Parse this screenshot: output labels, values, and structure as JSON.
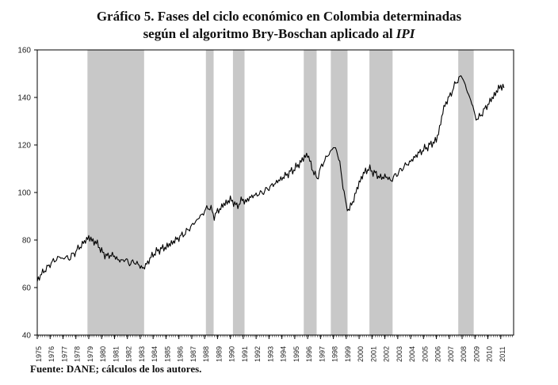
{
  "title": {
    "line1": "Gráfico 5. Fases del ciclo económico en Colombia determinadas",
    "line2_prefix": "según el algoritmo Bry-Boschan aplicado al",
    "line2_italic": "IPI"
  },
  "footer": "Fuente: DANE; cálculos de los autores.",
  "chart_data": {
    "type": "line",
    "title": "Gráfico 5. Fases del ciclo económico en Colombia determinadas según el algoritmo Bry-Boschan aplicado al IPI",
    "xlabel": "",
    "ylabel": "",
    "ylim": [
      40,
      160
    ],
    "yticks": [
      40,
      60,
      80,
      100,
      120,
      140,
      160
    ],
    "xlim": [
      1975.0,
      2012.0
    ],
    "xtick_labels": [
      "1975",
      "1976",
      "1977",
      "1978",
      "1979",
      "1980",
      "1981",
      "1982",
      "1983",
      "1984",
      "1985",
      "1986",
      "1987",
      "1988",
      "1989",
      "1990",
      "1991",
      "1992",
      "1993",
      "1994",
      "1995",
      "1996",
      "1997",
      "1998",
      "1999",
      "2000",
      "2001",
      "2002",
      "2003",
      "2004",
      "2005",
      "2006",
      "2007",
      "2008",
      "2009",
      "2010",
      "2011"
    ],
    "grid": false,
    "line_color": "#000000",
    "shade_color": "#c8c8c8",
    "recession_periods": [
      [
        1978.9,
        1983.3
      ],
      [
        1988.1,
        1988.7
      ],
      [
        1990.2,
        1991.1
      ],
      [
        1995.7,
        1996.7
      ],
      [
        1997.8,
        1999.1
      ],
      [
        2000.8,
        2002.6
      ],
      [
        2007.7,
        2008.9
      ]
    ],
    "series": [
      {
        "x": [
          1975.0,
          1975.25,
          1975.5,
          1975.75,
          1976.0,
          1976.25,
          1976.5,
          1976.75,
          1977.0,
          1977.25,
          1977.5,
          1977.75,
          1978.0,
          1978.25,
          1978.5,
          1978.75,
          1979.0,
          1979.25,
          1979.5,
          1979.75,
          1980.0,
          1980.25,
          1980.5,
          1980.75,
          1981.0,
          1981.25,
          1981.5,
          1981.75,
          1982.0,
          1982.25,
          1982.5,
          1982.75,
          1983.0,
          1983.25,
          1983.5,
          1983.75,
          1984.0,
          1984.5,
          1985.0,
          1985.5,
          1986.0,
          1986.5,
          1987.0,
          1987.5,
          1988.0,
          1988.25,
          1988.5,
          1988.75,
          1989.0,
          1989.5,
          1990.0,
          1990.25,
          1990.5,
          1990.75,
          1991.0,
          1991.25,
          1991.5,
          1992.0,
          1992.5,
          1993.0,
          1993.5,
          1994.0,
          1994.5,
          1995.0,
          1995.5,
          1995.75,
          1996.0,
          1996.25,
          1996.5,
          1996.75,
          1997.0,
          1997.25,
          1997.5,
          1997.75,
          1998.0,
          1998.25,
          1998.5,
          1998.75,
          1999.0,
          1999.25,
          1999.5,
          1999.75,
          2000.0,
          2000.25,
          2000.5,
          2000.75,
          2001.0,
          2001.25,
          2001.5,
          2001.75,
          2002.0,
          2002.25,
          2002.5,
          2002.75,
          2003.0,
          2003.5,
          2004.0,
          2004.5,
          2005.0,
          2005.5,
          2006.0,
          2006.25,
          2006.5,
          2006.75,
          2007.0,
          2007.25,
          2007.5,
          2007.75,
          2008.0,
          2008.25,
          2008.5,
          2008.75,
          2009.0,
          2009.25,
          2009.5,
          2009.75,
          2010.0,
          2010.25,
          2010.5,
          2010.75,
          2011.0,
          2011.25
        ],
        "values": [
          63,
          65,
          67,
          68,
          70,
          71,
          72,
          73,
          72,
          73,
          72,
          74,
          75,
          77,
          78,
          80,
          81,
          80,
          79,
          78,
          75,
          74,
          73,
          74,
          73,
          72,
          71,
          72,
          71,
          70,
          71,
          70,
          69,
          68,
          70,
          72,
          74,
          76,
          77,
          79,
          81,
          83,
          86,
          89,
          92,
          94,
          93,
          90,
          92,
          95,
          97,
          96,
          94,
          96,
          97,
          96,
          98,
          99,
          100,
          102,
          104,
          106,
          108,
          110,
          113,
          115,
          116,
          112,
          108,
          106,
          110,
          113,
          115,
          117,
          119,
          118,
          112,
          103,
          94,
          93,
          96,
          100,
          104,
          107,
          109,
          110,
          109,
          108,
          107,
          106,
          107,
          106,
          105,
          107,
          108,
          111,
          113,
          116,
          118,
          120,
          122,
          127,
          134,
          138,
          140,
          143,
          146,
          148,
          149,
          145,
          141,
          138,
          132,
          131,
          133,
          135,
          137,
          139,
          141,
          143,
          145,
          144
        ]
      }
    ]
  }
}
